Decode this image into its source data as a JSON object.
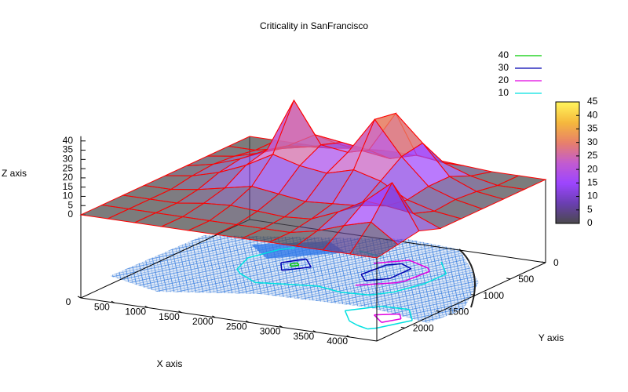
{
  "chart_data": {
    "type": "surface3d",
    "title": "Criticality in SanFrancisco",
    "xlabel": "X axis",
    "ylabel": "Y axis",
    "zlabel": "Z axis",
    "xlim": [
      0,
      4400
    ],
    "ylim": [
      0,
      2400
    ],
    "zlim": [
      -45,
      45
    ],
    "xticks": [
      0,
      500,
      1000,
      1500,
      2000,
      2500,
      3000,
      3500,
      4000
    ],
    "yticks": [
      0,
      500,
      1000,
      1500,
      2000
    ],
    "zticks": [
      0,
      5,
      10,
      15,
      20,
      25,
      30,
      35,
      40
    ],
    "cblim": [
      0,
      45
    ],
    "cbticks": [
      0,
      5,
      10,
      15,
      20,
      25,
      30,
      35,
      40,
      45
    ],
    "palette": [
      "#4a4a4a",
      "#6a3fb0",
      "#9c45ff",
      "#c25bd0",
      "#e8806a",
      "#f5b83c",
      "#fff45c"
    ],
    "edge_color": "#ff0000",
    "grid_x": [
      0,
      400,
      800,
      1200,
      1600,
      2000,
      2400,
      2800,
      3200,
      3600,
      4000,
      4400
    ],
    "grid_y": [
      0,
      300,
      600,
      900,
      1200,
      1500,
      1800,
      2100,
      2400
    ],
    "z": [
      [
        0,
        0,
        0,
        0,
        2,
        3,
        3,
        2,
        1,
        0,
        0,
        0
      ],
      [
        0,
        0,
        3,
        6,
        10,
        8,
        6,
        10,
        8,
        3,
        0,
        0
      ],
      [
        0,
        2,
        6,
        12,
        20,
        18,
        16,
        38,
        24,
        8,
        2,
        0
      ],
      [
        0,
        3,
        8,
        15,
        44,
        22,
        20,
        40,
        22,
        8,
        3,
        0
      ],
      [
        0,
        2,
        6,
        12,
        20,
        16,
        14,
        18,
        14,
        6,
        2,
        0
      ],
      [
        0,
        0,
        2,
        5,
        8,
        6,
        4,
        5,
        6,
        8,
        6,
        0
      ],
      [
        0,
        0,
        0,
        2,
        3,
        2,
        1,
        2,
        8,
        16,
        28,
        4
      ],
      [
        0,
        0,
        0,
        0,
        0,
        0,
        0,
        0,
        3,
        8,
        12,
        2
      ],
      [
        0,
        0,
        0,
        0,
        0,
        0,
        0,
        0,
        0,
        0,
        0,
        0
      ]
    ],
    "contours": [
      {
        "name": "40",
        "level": 40,
        "color": "#00cc00"
      },
      {
        "name": "30",
        "level": 30,
        "color": "#0000b0"
      },
      {
        "name": "20",
        "level": 20,
        "color": "#e000e0"
      },
      {
        "name": "10",
        "level": 10,
        "color": "#00e0e0"
      }
    ]
  }
}
